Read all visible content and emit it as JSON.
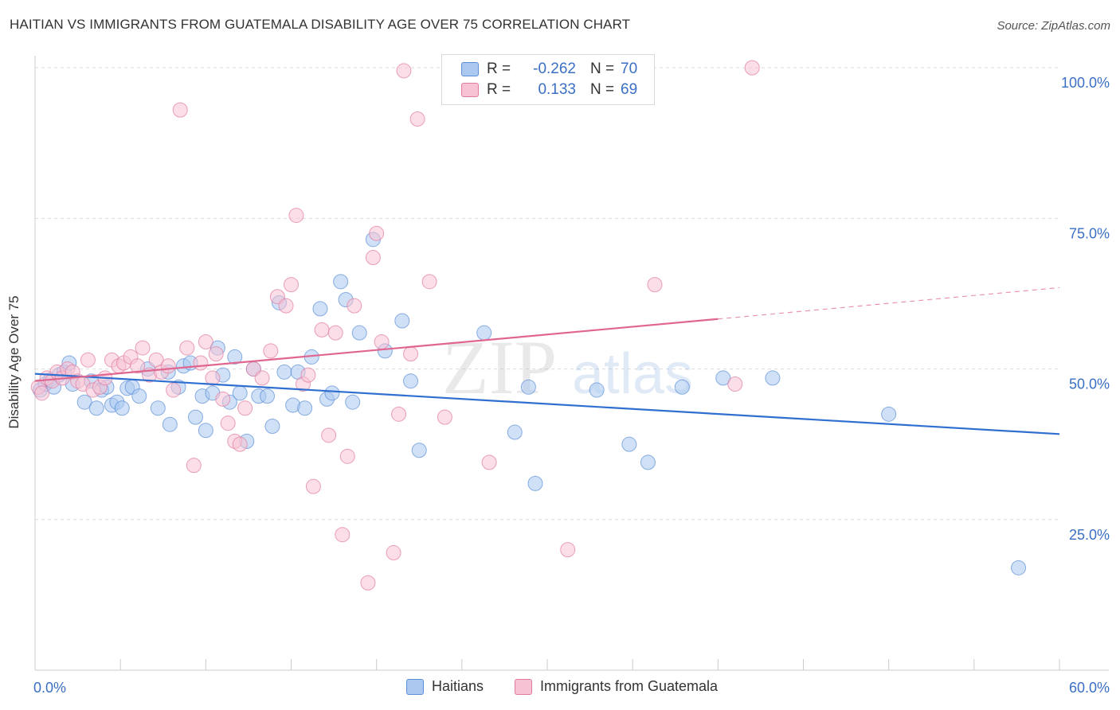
{
  "title": "HAITIAN VS IMMIGRANTS FROM GUATEMALA DISABILITY AGE OVER 75 CORRELATION CHART",
  "source": "Source: ZipAtlas.com",
  "watermark": {
    "zip": "ZIP",
    "atlas": "atlas"
  },
  "legend_top": {
    "rows": [
      {
        "r_label": "R =",
        "r_value": "-0.262",
        "n_label": "N =",
        "n_value": "70",
        "color": "#aac8f0",
        "border": "#5b8fd6"
      },
      {
        "r_label": "R =",
        "r_value": "0.133",
        "n_label": "N =",
        "n_value": "69",
        "color": "#f7c3d4",
        "border": "#e07aa0"
      }
    ]
  },
  "chart_data": {
    "type": "scatter",
    "title": "HAITIAN VS IMMIGRANTS FROM GUATEMALA DISABILITY AGE OVER 75 CORRELATION CHART",
    "ylabel": "Disability Age Over 75",
    "xlabel": "",
    "xlim": [
      0,
      60
    ],
    "ylim": [
      0,
      102
    ],
    "x_ticks": [
      {
        "value": 0,
        "label": "0.0%"
      },
      {
        "value": 60,
        "label": "60.0%"
      }
    ],
    "y_ticks": [
      {
        "value": 25,
        "label": "25.0%"
      },
      {
        "value": 50,
        "label": "50.0%"
      },
      {
        "value": 75,
        "label": "75.0%"
      },
      {
        "value": 100,
        "label": "100.0%"
      }
    ],
    "grid": "dashed horizontal",
    "legend": [
      "Haitians",
      "Immigrants from Guatemala"
    ],
    "series": [
      {
        "name": "Haitians",
        "color": "#aac8f0",
        "stroke": "#5b8fd6",
        "line_color": "#2f6fd0",
        "trend": {
          "x0": 0,
          "y0": 49.2,
          "x1": 60,
          "y1": 39.2
        },
        "points": [
          [
            0.3,
            46.5
          ],
          [
            0.6,
            47.5
          ],
          [
            0.9,
            48.2
          ],
          [
            1.1,
            47.0
          ],
          [
            1.4,
            49.0
          ],
          [
            1.7,
            49.5
          ],
          [
            2.0,
            51.0
          ],
          [
            2.2,
            47.5
          ],
          [
            2.9,
            44.5
          ],
          [
            3.3,
            48.0
          ],
          [
            3.6,
            43.5
          ],
          [
            3.9,
            46.5
          ],
          [
            4.2,
            47.0
          ],
          [
            4.5,
            44.0
          ],
          [
            4.8,
            44.5
          ],
          [
            5.1,
            43.5
          ],
          [
            5.4,
            46.8
          ],
          [
            5.7,
            47.0
          ],
          [
            6.1,
            45.5
          ],
          [
            6.6,
            50.0
          ],
          [
            7.2,
            43.5
          ],
          [
            7.8,
            49.5
          ],
          [
            7.9,
            40.8
          ],
          [
            8.4,
            47.0
          ],
          [
            8.7,
            50.5
          ],
          [
            9.1,
            51.0
          ],
          [
            9.4,
            42.0
          ],
          [
            9.8,
            45.5
          ],
          [
            10.0,
            39.8
          ],
          [
            10.4,
            46.0
          ],
          [
            10.7,
            53.5
          ],
          [
            11.0,
            49.0
          ],
          [
            11.4,
            44.5
          ],
          [
            11.7,
            52.0
          ],
          [
            12.0,
            46.0
          ],
          [
            12.4,
            38.0
          ],
          [
            12.8,
            50.0
          ],
          [
            13.1,
            45.5
          ],
          [
            13.6,
            45.5
          ],
          [
            13.9,
            40.5
          ],
          [
            14.3,
            61.0
          ],
          [
            14.6,
            49.5
          ],
          [
            15.1,
            44.0
          ],
          [
            15.4,
            49.5
          ],
          [
            15.8,
            43.5
          ],
          [
            16.2,
            52.0
          ],
          [
            16.7,
            60.0
          ],
          [
            17.1,
            45.0
          ],
          [
            17.4,
            46.0
          ],
          [
            17.9,
            64.5
          ],
          [
            18.2,
            61.5
          ],
          [
            18.6,
            44.5
          ],
          [
            19.0,
            56.0
          ],
          [
            19.8,
            71.5
          ],
          [
            20.5,
            53.0
          ],
          [
            21.5,
            58.0
          ],
          [
            22.0,
            48.0
          ],
          [
            22.5,
            36.5
          ],
          [
            26.3,
            56.0
          ],
          [
            28.1,
            39.5
          ],
          [
            28.9,
            47.0
          ],
          [
            29.3,
            31.0
          ],
          [
            32.9,
            46.5
          ],
          [
            34.8,
            37.5
          ],
          [
            35.9,
            34.5
          ],
          [
            37.9,
            47.0
          ],
          [
            40.3,
            48.5
          ],
          [
            43.2,
            48.5
          ],
          [
            50.0,
            42.5
          ],
          [
            57.6,
            17.0
          ]
        ]
      },
      {
        "name": "Immigrants from Guatemala",
        "color": "#f7c3d4",
        "stroke": "#e07aa0",
        "line_color": "#e06690",
        "trend": {
          "x0": 0,
          "y0": 48.0,
          "x1": 40,
          "y1": 58.3
        },
        "trend_dashed": {
          "x0": 40,
          "y0": 58.3,
          "x1": 60,
          "y1": 63.5
        },
        "points": [
          [
            0.2,
            47.0
          ],
          [
            0.4,
            46.0
          ],
          [
            0.7,
            48.5
          ],
          [
            1.0,
            48.0
          ],
          [
            1.3,
            49.5
          ],
          [
            1.6,
            48.5
          ],
          [
            1.9,
            50.0
          ],
          [
            2.2,
            49.5
          ],
          [
            2.5,
            48.0
          ],
          [
            2.8,
            47.5
          ],
          [
            3.1,
            51.5
          ],
          [
            3.4,
            46.5
          ],
          [
            3.8,
            47.0
          ],
          [
            4.1,
            48.5
          ],
          [
            4.5,
            51.5
          ],
          [
            4.9,
            50.5
          ],
          [
            5.2,
            51.0
          ],
          [
            5.6,
            52.0
          ],
          [
            6.0,
            50.5
          ],
          [
            6.3,
            53.5
          ],
          [
            6.7,
            49.0
          ],
          [
            7.1,
            51.5
          ],
          [
            7.4,
            49.5
          ],
          [
            7.8,
            50.5
          ],
          [
            8.1,
            46.5
          ],
          [
            8.5,
            93.0
          ],
          [
            8.9,
            53.5
          ],
          [
            9.3,
            34.0
          ],
          [
            9.7,
            51.0
          ],
          [
            10.0,
            54.5
          ],
          [
            10.4,
            48.5
          ],
          [
            10.6,
            52.5
          ],
          [
            11.0,
            45.0
          ],
          [
            11.3,
            41.0
          ],
          [
            11.7,
            38.0
          ],
          [
            12.0,
            37.5
          ],
          [
            12.3,
            43.5
          ],
          [
            12.8,
            50.0
          ],
          [
            13.3,
            48.5
          ],
          [
            13.8,
            53.0
          ],
          [
            14.2,
            62.0
          ],
          [
            14.7,
            60.5
          ],
          [
            15.0,
            64.0
          ],
          [
            15.3,
            75.5
          ],
          [
            15.7,
            47.5
          ],
          [
            16.0,
            49.0
          ],
          [
            16.3,
            30.5
          ],
          [
            16.8,
            56.5
          ],
          [
            17.2,
            39.0
          ],
          [
            17.6,
            56.0
          ],
          [
            18.0,
            22.5
          ],
          [
            18.3,
            35.5
          ],
          [
            18.7,
            60.5
          ],
          [
            19.5,
            14.5
          ],
          [
            19.8,
            68.5
          ],
          [
            20.0,
            72.5
          ],
          [
            20.3,
            54.5
          ],
          [
            21.0,
            19.5
          ],
          [
            21.3,
            42.5
          ],
          [
            21.6,
            99.5
          ],
          [
            22.0,
            52.5
          ],
          [
            22.4,
            91.5
          ],
          [
            23.1,
            64.5
          ],
          [
            24.0,
            42.0
          ],
          [
            26.6,
            34.5
          ],
          [
            31.2,
            20.0
          ],
          [
            36.3,
            64.0
          ],
          [
            41.0,
            47.5
          ],
          [
            42.0,
            100.0
          ]
        ]
      }
    ]
  }
}
